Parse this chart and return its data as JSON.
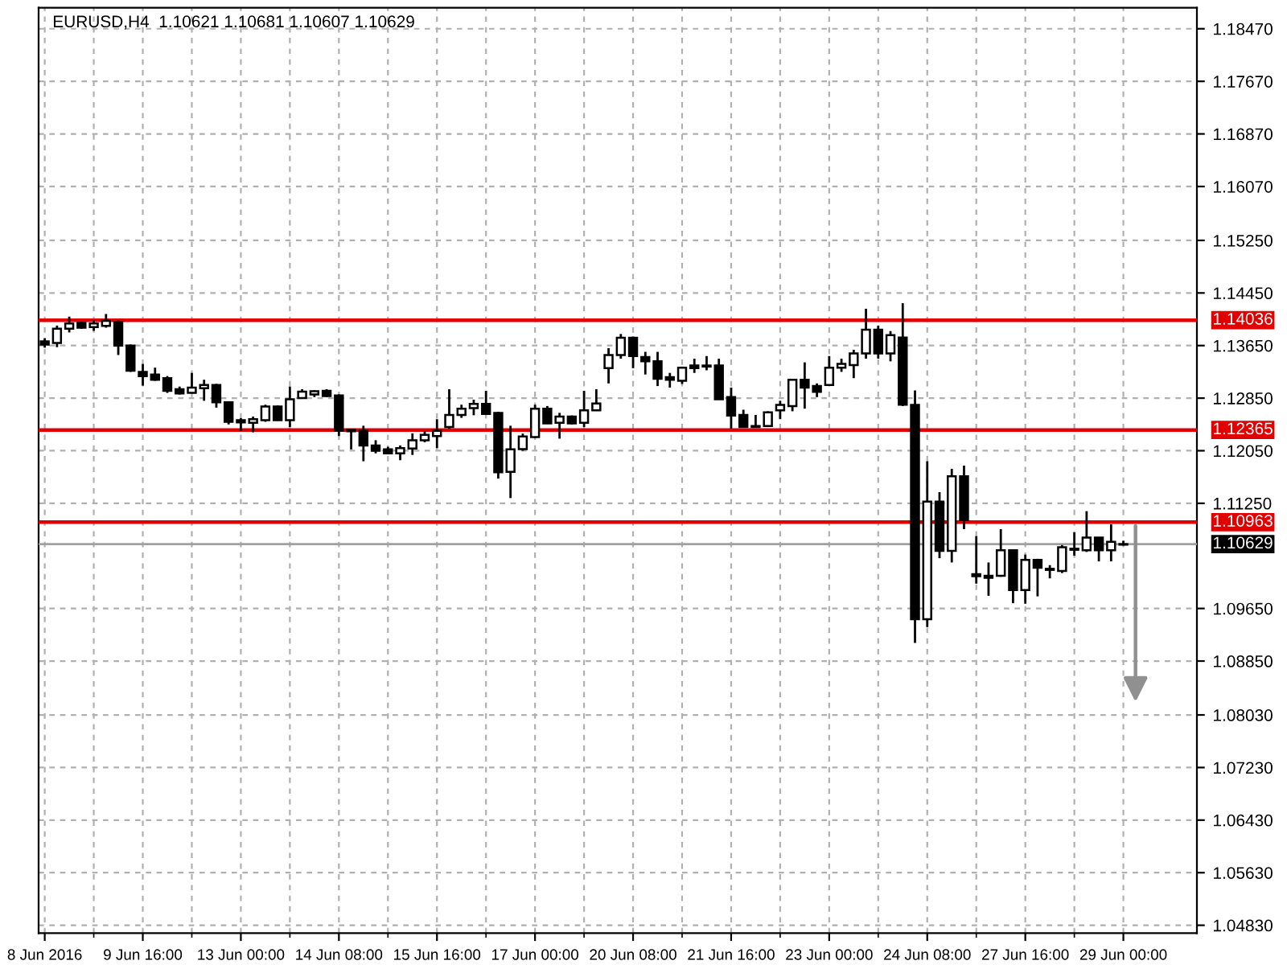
{
  "chart_data": {
    "type": "candlestick",
    "title": "EURUSD,H4  1.10621 1.10681 1.10607 1.10629",
    "color": "#000000",
    "grid": true,
    "categories": [
      "8 Jun 2016",
      null,
      null,
      null,
      null,
      null,
      null,
      null,
      "9 Jun 16:00",
      null,
      null,
      null,
      null,
      null,
      null,
      null,
      "13 Jun 00:00",
      null,
      null,
      null,
      null,
      null,
      null,
      null,
      "14 Jun 08:00",
      null,
      null,
      null,
      null,
      null,
      null,
      null,
      "15 Jun 16:00",
      null,
      null,
      null,
      null,
      null,
      null,
      null,
      "17 Jun 00:00",
      null,
      null,
      null,
      null,
      null,
      null,
      null,
      "20 Jun 08:00",
      null,
      null,
      null,
      null,
      null,
      null,
      null,
      "21 Jun 16:00",
      null,
      null,
      null,
      null,
      null,
      null,
      null,
      "23 Jun 00:00",
      null,
      null,
      null,
      null,
      null,
      null,
      null,
      "24 Jun 08:00",
      null,
      null,
      null,
      null,
      null,
      null,
      null,
      "27 Jun 16:00",
      null,
      null,
      null,
      null,
      null,
      null,
      null,
      "29 Jun 00:00"
    ],
    "ohlc": [
      [
        1.13714,
        1.13762,
        1.13618,
        1.13666
      ],
      [
        1.1369,
        1.13954,
        1.13626,
        1.13906
      ],
      [
        1.13906,
        1.1409,
        1.1385,
        1.13986
      ],
      [
        1.13994,
        1.1401,
        1.13906,
        1.13922
      ],
      [
        1.1393,
        1.14034,
        1.13874,
        1.13986
      ],
      [
        1.1395,
        1.1413,
        1.13922,
        1.14026
      ],
      [
        1.1401,
        1.14034,
        1.13506,
        1.1365
      ],
      [
        1.1365,
        1.13666,
        1.1325,
        1.13266
      ],
      [
        1.1325,
        1.1337,
        1.1304,
        1.13186
      ],
      [
        1.1321,
        1.13314,
        1.13114,
        1.1313
      ],
      [
        1.13154,
        1.13186,
        1.1293,
        1.12962
      ],
      [
        1.12986,
        1.13026,
        1.12906,
        1.12922
      ],
      [
        1.1293,
        1.13234,
        1.12922,
        1.1301
      ],
      [
        1.13002,
        1.1313,
        1.1281,
        1.1305
      ],
      [
        1.1305,
        1.13066,
        1.12706,
        1.12786
      ],
      [
        1.12786,
        1.12802,
        1.1245,
        1.1249
      ],
      [
        1.12514,
        1.12546,
        1.1235,
        1.12482
      ],
      [
        1.12474,
        1.1257,
        1.1233,
        1.1253
      ],
      [
        1.12514,
        1.1275,
        1.1249,
        1.12722
      ],
      [
        1.12722,
        1.12738,
        1.12506,
        1.12514
      ],
      [
        1.12514,
        1.13026,
        1.1241,
        1.12834
      ],
      [
        1.1285,
        1.12986,
        1.12842,
        1.1295
      ],
      [
        1.12906,
        1.1297,
        1.12866,
        1.12954
      ],
      [
        1.12962,
        1.12986,
        1.12866,
        1.12882
      ],
      [
        1.1289,
        1.12906,
        1.12274,
        1.12354
      ],
      [
        1.1237,
        1.12386,
        1.1207,
        1.12346
      ],
      [
        1.12354,
        1.1243,
        1.1189,
        1.1213
      ],
      [
        1.1213,
        1.1221,
        1.1201,
        1.1205
      ],
      [
        1.1207,
        1.1211,
        1.11994,
        1.1201
      ],
      [
        1.1201,
        1.1213,
        1.11906,
        1.1209
      ],
      [
        1.12082,
        1.12314,
        1.11986,
        1.1221
      ],
      [
        1.1221,
        1.1235,
        1.12178,
        1.1229
      ],
      [
        1.12274,
        1.1253,
        1.1209,
        1.12354
      ],
      [
        1.1241,
        1.12986,
        1.12386,
        1.12594
      ],
      [
        1.12594,
        1.1275,
        1.1255,
        1.1269
      ],
      [
        1.12698,
        1.12826,
        1.1259,
        1.12762
      ],
      [
        1.12762,
        1.12962,
        1.12594,
        1.1261
      ],
      [
        1.12626,
        1.12642,
        1.11626,
        1.11722
      ],
      [
        1.1173,
        1.1243,
        1.1133,
        1.1207
      ],
      [
        1.12074,
        1.1231,
        1.1205,
        1.12266
      ],
      [
        1.12258,
        1.1275,
        1.12242,
        1.1269
      ],
      [
        1.1269,
        1.1273,
        1.12458,
        1.12466
      ],
      [
        1.12474,
        1.12626,
        1.12234,
        1.1257
      ],
      [
        1.1257,
        1.12586,
        1.1245,
        1.12466
      ],
      [
        1.12474,
        1.12962,
        1.1241,
        1.12666
      ],
      [
        1.12666,
        1.12986,
        1.12658,
        1.1277
      ],
      [
        1.13306,
        1.1361,
        1.13074,
        1.13506
      ],
      [
        1.13506,
        1.13826,
        1.1345,
        1.1377
      ],
      [
        1.1377,
        1.13786,
        1.13306,
        1.1349
      ],
      [
        1.13474,
        1.13554,
        1.1321,
        1.1341
      ],
      [
        1.1341,
        1.13554,
        1.13034,
        1.13146
      ],
      [
        1.1317,
        1.13234,
        1.1301,
        1.1313
      ],
      [
        1.13114,
        1.1333,
        1.13066,
        1.13314
      ],
      [
        1.13346,
        1.1345,
        1.13234,
        1.13306
      ],
      [
        1.13346,
        1.1349,
        1.13274,
        1.1333
      ],
      [
        1.13346,
        1.1345,
        1.12826,
        1.12834
      ],
      [
        1.12866,
        1.1301,
        1.12386,
        1.12586
      ],
      [
        1.12594,
        1.12674,
        1.12402,
        1.1241
      ],
      [
        1.12426,
        1.12594,
        1.12402,
        1.1241
      ],
      [
        1.12426,
        1.1265,
        1.1241,
        1.12634
      ],
      [
        1.12666,
        1.1281,
        1.1253,
        1.12746
      ],
      [
        1.1273,
        1.1313,
        1.1265,
        1.1313
      ],
      [
        1.1313,
        1.13394,
        1.1269,
        1.1301
      ],
      [
        1.13034,
        1.13074,
        1.12866,
        1.12946
      ],
      [
        1.1305,
        1.1349,
        1.13034,
        1.13314
      ],
      [
        1.13314,
        1.1345,
        1.1325,
        1.1337
      ],
      [
        1.13354,
        1.13586,
        1.13154,
        1.1353
      ],
      [
        1.1353,
        1.1421,
        1.1345,
        1.1389
      ],
      [
        1.1389,
        1.13954,
        1.1345,
        1.1353
      ],
      [
        1.1353,
        1.1387,
        1.1341,
        1.1381
      ],
      [
        1.13771,
        1.14294,
        1.1273,
        1.12749
      ],
      [
        1.12748,
        1.12966,
        1.09126,
        1.09488
      ],
      [
        1.09488,
        1.1189,
        1.09367,
        1.11275
      ],
      [
        1.11275,
        1.1142,
        1.10414,
        1.10527
      ],
      [
        1.10527,
        1.11774,
        1.1035,
        1.11662
      ],
      [
        1.11662,
        1.11823,
        1.10857,
        1.10994
      ],
      [
        1.10172,
        1.1075,
        1.10028,
        1.1014
      ],
      [
        1.10148,
        1.1035,
        1.09843,
        1.10116
      ],
      [
        1.10148,
        1.10857,
        1.10132,
        1.10535
      ],
      [
        1.10535,
        1.10551,
        1.0973,
        1.09931
      ],
      [
        1.09931,
        1.1047,
        1.09722,
        1.1039
      ],
      [
        1.1039,
        1.10406,
        1.09834,
        1.10269
      ],
      [
        1.10253,
        1.10309,
        1.10108,
        1.10237
      ],
      [
        1.10221,
        1.10615,
        1.10189,
        1.10583
      ],
      [
        1.10543,
        1.10808,
        1.10454,
        1.10559
      ],
      [
        1.10535,
        1.1113,
        1.1051,
        1.10728
      ],
      [
        1.10728,
        1.10736,
        1.10366,
        1.10535
      ],
      [
        1.10535,
        1.10929,
        1.10366,
        1.10663
      ],
      [
        1.10621,
        1.10681,
        1.10607,
        1.10629
      ]
    ],
    "ylim": [
      1.0471,
      1.1879
    ],
    "yticks": [
      {
        "value": 1.1847,
        "label": "1.18470"
      },
      {
        "value": 1.1767,
        "label": "1.17670"
      },
      {
        "value": 1.1687,
        "label": "1.16870"
      },
      {
        "value": 1.1607,
        "label": "1.16070"
      },
      {
        "value": 1.1525,
        "label": "1.15250"
      },
      {
        "value": 1.1445,
        "label": "1.14450"
      },
      {
        "value": 1.1365,
        "label": "1.13650"
      },
      {
        "value": 1.1285,
        "label": "1.12850"
      },
      {
        "value": 1.1205,
        "label": "1.12050"
      },
      {
        "value": 1.1125,
        "label": "1.11250"
      },
      {
        "value": 1.0965,
        "label": "1.09650"
      },
      {
        "value": 1.0885,
        "label": "1.08850"
      },
      {
        "value": 1.0803,
        "label": "1.08030"
      },
      {
        "value": 1.0723,
        "label": "1.07230"
      },
      {
        "value": 1.0643,
        "label": "1.06430"
      },
      {
        "value": 1.0563,
        "label": "1.05630"
      },
      {
        "value": 1.0483,
        "label": "1.04830"
      }
    ],
    "ref_lines": [
      {
        "axis": "y",
        "value": 1.14036,
        "label": "1.14036",
        "color": "#e00000"
      },
      {
        "axis": "y",
        "value": 1.12365,
        "label": "1.12365",
        "color": "#e00000"
      },
      {
        "axis": "y",
        "value": 1.10963,
        "label": "1.10963",
        "color": "#e00000"
      },
      {
        "axis": "y",
        "value": 1.10629,
        "label": "1.10629",
        "color": "#a0a0a0"
      }
    ]
  }
}
